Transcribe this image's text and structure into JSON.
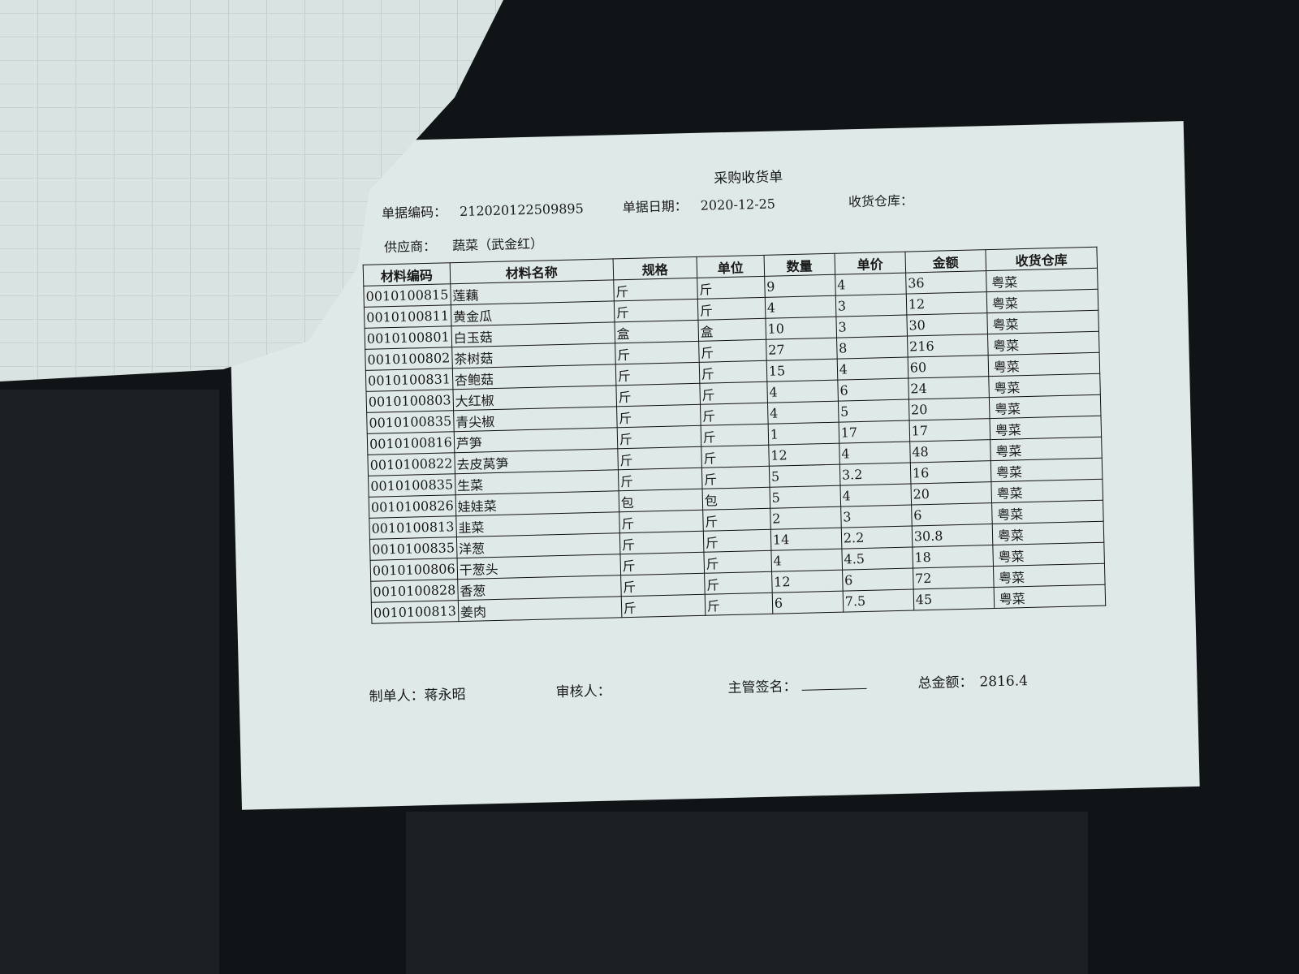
{
  "form": {
    "title": "采购收货单",
    "doc_no_label": "单据编码：",
    "doc_no": "212020122509895",
    "doc_date_label": "单据日期：",
    "doc_date": "2020-12-25",
    "warehouse_label": "收货仓库：",
    "supplier_label": "供应商：",
    "supplier": "蔬菜（武金红）"
  },
  "table": {
    "columns": [
      "材料编码",
      "材料名称",
      "规格",
      "单位",
      "数量",
      "单价",
      "金额",
      "收货仓库"
    ],
    "rows": [
      [
        "0010100815",
        "莲藕",
        "斤",
        "斤",
        "9",
        "4",
        "36",
        "粤菜"
      ],
      [
        "0010100811",
        "黄金瓜",
        "斤",
        "斤",
        "4",
        "3",
        "12",
        "粤菜"
      ],
      [
        "0010100801",
        "白玉菇",
        "盒",
        "盒",
        "10",
        "3",
        "30",
        "粤菜"
      ],
      [
        "0010100802",
        "茶树菇",
        "斤",
        "斤",
        "27",
        "8",
        "216",
        "粤菜"
      ],
      [
        "0010100831",
        "杏鲍菇",
        "斤",
        "斤",
        "15",
        "4",
        "60",
        "粤菜"
      ],
      [
        "0010100803",
        "大红椒",
        "斤",
        "斤",
        "4",
        "6",
        "24",
        "粤菜"
      ],
      [
        "0010100835",
        "青尖椒",
        "斤",
        "斤",
        "4",
        "5",
        "20",
        "粤菜"
      ],
      [
        "0010100816",
        "芦笋",
        "斤",
        "斤",
        "1",
        "17",
        "17",
        "粤菜"
      ],
      [
        "0010100822",
        "去皮莴笋",
        "斤",
        "斤",
        "12",
        "4",
        "48",
        "粤菜"
      ],
      [
        "0010100835",
        "生菜",
        "斤",
        "斤",
        "5",
        "3.2",
        "16",
        "粤菜"
      ],
      [
        "0010100826",
        "娃娃菜",
        "包",
        "包",
        "5",
        "4",
        "20",
        "粤菜"
      ],
      [
        "0010100813",
        "韭菜",
        "斤",
        "斤",
        "2",
        "3",
        "6",
        "粤菜"
      ],
      [
        "0010100835",
        "洋葱",
        "斤",
        "斤",
        "14",
        "2.2",
        "30.8",
        "粤菜"
      ],
      [
        "0010100806",
        "干葱头",
        "斤",
        "斤",
        "4",
        "4.5",
        "18",
        "粤菜"
      ],
      [
        "0010100828",
        "香葱",
        "斤",
        "斤",
        "12",
        "6",
        "72",
        "粤菜"
      ],
      [
        "0010100813",
        "姜肉",
        "斤",
        "斤",
        "6",
        "7.5",
        "45",
        "粤菜"
      ]
    ]
  },
  "footer": {
    "maker_label": "制单人：",
    "maker": "蒋永昭",
    "reviewer_label": "审核人：",
    "supervisor_label": "主管签名：",
    "total_label": "总金额：",
    "total": "2816.4"
  }
}
